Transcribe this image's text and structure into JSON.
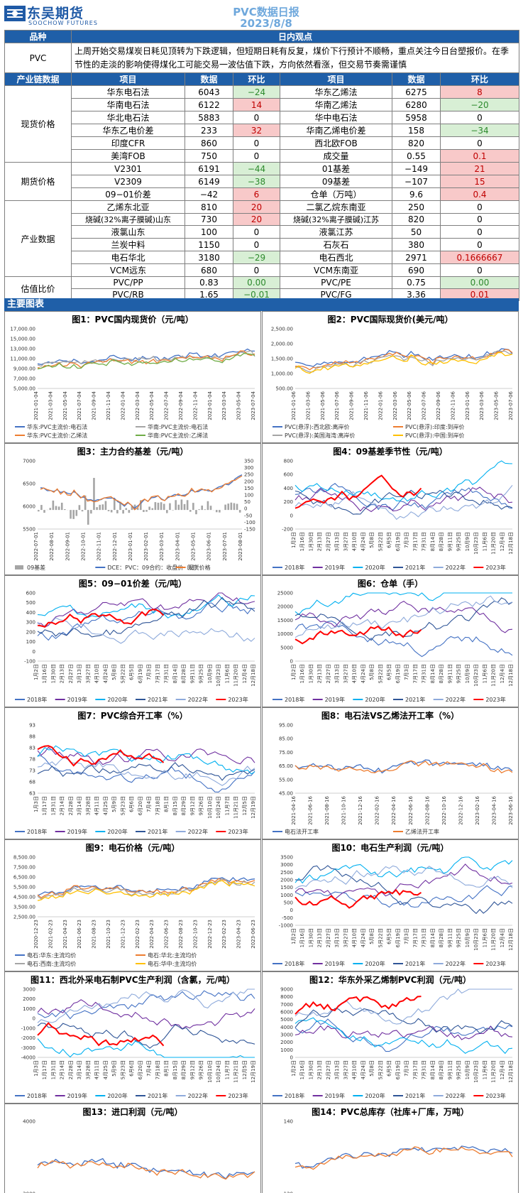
{
  "header": {
    "company_cn": "东吴期货",
    "company_en": "SOOCHOW FUTURES",
    "title": "PVC数据日报",
    "date": "2023/8/8"
  },
  "view": {
    "col_variety": "品种",
    "col_view": "日内观点",
    "variety": "PVC",
    "text": "上周开始交易煤炭日耗见顶转为下跌逻辑，但短期日耗有反复，煤价下行预计不顺畅，重点关注今日台塑报价。在季节性的走淡的影响使得煤化工可能交易一波估值下跌，方向依然看涨，但交易节奏需谨慎"
  },
  "table_headers": {
    "category": "产业链数据",
    "item": "项目",
    "data": "数据",
    "change": "环比"
  },
  "sections": [
    {
      "name": "现货价格",
      "rows": [
        {
          "l_item": "华东电石法",
          "l_val": "6043",
          "l_chg": "−24",
          "l_sign": "neg",
          "r_item": "华东乙烯法",
          "r_val": "6275",
          "r_chg": "8",
          "r_sign": "pos"
        },
        {
          "l_item": "华南电石法",
          "l_val": "6122",
          "l_chg": "14",
          "l_sign": "pos",
          "r_item": "华南乙烯法",
          "r_val": "6280",
          "r_chg": "−20",
          "r_sign": "neg"
        },
        {
          "l_item": "华北电石法",
          "l_val": "5883",
          "l_chg": "0",
          "l_sign": "",
          "r_item": "华中电石法",
          "r_val": "5958",
          "r_chg": "0",
          "r_sign": ""
        },
        {
          "l_item": "华东乙电价差",
          "l_val": "233",
          "l_chg": "32",
          "l_sign": "pos",
          "r_item": "华南乙烯电价差",
          "r_val": "158",
          "r_chg": "−34",
          "r_sign": "neg"
        },
        {
          "l_item": "印度CFR",
          "l_val": "860",
          "l_chg": "0",
          "l_sign": "",
          "r_item": "西北欧FOB",
          "r_val": "820",
          "r_chg": "0",
          "r_sign": ""
        },
        {
          "l_item": "美湾FOB",
          "l_val": "750",
          "l_chg": "0",
          "l_sign": "",
          "r_item": "成交量",
          "r_val": "0.55",
          "r_chg": "0.1",
          "r_sign": "pos"
        }
      ]
    },
    {
      "name": "期货价格",
      "rows": [
        {
          "l_item": "V2301",
          "l_val": "6191",
          "l_chg": "−44",
          "l_sign": "neg",
          "r_item": "01基差",
          "r_val": "−149",
          "r_chg": "21",
          "r_sign": "pos"
        },
        {
          "l_item": "V2309",
          "l_val": "6149",
          "l_chg": "−38",
          "l_sign": "neg",
          "r_item": "09基差",
          "r_val": "−107",
          "r_chg": "15",
          "r_sign": "pos"
        },
        {
          "l_item": "09−01价差",
          "l_val": "−42",
          "l_chg": "6",
          "l_sign": "pos",
          "r_item": "仓单（万吨）",
          "r_val": "9.6",
          "r_chg": "0.4",
          "r_sign": "pos"
        }
      ]
    },
    {
      "name": "产业数据",
      "rows": [
        {
          "l_item": "乙烯东北亚",
          "l_val": "810",
          "l_chg": "20",
          "l_sign": "pos",
          "r_item": "二氯乙烷东南亚",
          "r_val": "250",
          "r_chg": "0",
          "r_sign": ""
        },
        {
          "l_item": "烧碱(32%离子膜碱)山东",
          "l_val": "730",
          "l_chg": "20",
          "l_sign": "pos",
          "r_item": "烧碱(32%离子膜碱)江苏",
          "r_val": "820",
          "r_chg": "0",
          "r_sign": ""
        },
        {
          "l_item": "液氯山东",
          "l_val": "100",
          "l_chg": "0",
          "l_sign": "",
          "r_item": "液氯江苏",
          "r_val": "50",
          "r_chg": "0",
          "r_sign": ""
        },
        {
          "l_item": "兰炭中料",
          "l_val": "1150",
          "l_chg": "0",
          "l_sign": "",
          "r_item": "石灰石",
          "r_val": "380",
          "r_chg": "0",
          "r_sign": ""
        },
        {
          "l_item": "电石华北",
          "l_val": "3180",
          "l_chg": "−29",
          "l_sign": "neg",
          "r_item": "电石西北",
          "r_val": "2971",
          "r_chg": "0.1666667",
          "r_sign": "pos"
        },
        {
          "l_item": "VCM远东",
          "l_val": "680",
          "l_chg": "0",
          "l_sign": "",
          "r_item": "VCM东南亚",
          "r_val": "690",
          "r_chg": "0",
          "r_sign": ""
        }
      ]
    },
    {
      "name": "估值比价",
      "rows": [
        {
          "l_item": "PVC/PP",
          "l_val": "0.83",
          "l_chg": "0.00",
          "l_sign": "neg",
          "r_item": "PVC/PE",
          "r_val": "0.75",
          "r_chg": "0.00",
          "r_sign": "neg"
        },
        {
          "l_item": "PVC/RB",
          "l_val": "1.65",
          "l_chg": "−0.01",
          "l_sign": "neg",
          "r_item": "PVC/FG",
          "r_val": "3.36",
          "r_chg": "0.01",
          "r_sign": "pos"
        }
      ]
    }
  ],
  "charts_section": "主要图表",
  "colors": {
    "header_blue": "#1f5fa8",
    "neg_green": "#2d8a2d",
    "pos_red": "#c00000",
    "c2018": "#4472c4",
    "c2019": "#7030a0",
    "c2020": "#00b0f0",
    "c2021": "#2f5597",
    "c2022": "#8eaadb",
    "c2023": "#ff0000"
  },
  "charts": [
    {
      "title": "图1：PVC国内现货价（元/吨）",
      "type": "line",
      "yticks": [
        "17,000.00",
        "15,000.00",
        "13,000.00",
        "11,000.00",
        "9,000.00",
        "7,000.00",
        "5,000.00"
      ],
      "xticks": [
        "2021-01-04",
        "2021-03-04",
        "2021-05-04",
        "2021-07-04",
        "2021-09-04",
        "2021-11-04",
        "2022-01-04",
        "2022-03-04",
        "2022-05-04",
        "2022-07-04",
        "2022-09-04",
        "2022-11-04",
        "2023-01-04",
        "2023-03-04",
        "2023-05-04",
        "2023-07-04"
      ],
      "legend": [
        "华东:PVC主流价:电石法",
        "华南:PVC主流价:电石法",
        "华东:PVC主流价:乙烯法",
        "华南:PVC主流价:乙烯法"
      ],
      "legend_colors": [
        "#4472c4",
        "#a5a5a5",
        "#ed7d31",
        "#70ad47"
      ]
    },
    {
      "title": "图2：PVC国际现货价(美元/吨）",
      "type": "line",
      "yticks": [
        "2,500.00",
        "2,000.00",
        "1,500.00",
        "1,000.00",
        "500.00"
      ],
      "xticks": [
        "2021-01-06",
        "2021-03-06",
        "2021-05-06",
        "2021-07-06",
        "2021-09-06",
        "2021-11-06",
        "2022-01-06",
        "2022-03-06",
        "2022-05-06",
        "2022-07-06",
        "2022-09-06",
        "2022-11-06",
        "2023-01-06",
        "2023-03-06",
        "2023-05-06",
        "2023-07-06"
      ],
      "legend": [
        "PVC(悬浮):西北欧:离岸价",
        "PVC(悬浮):印度:到岸价",
        "PVC(悬浮):美国海湾:离岸价",
        "PVC(悬浮):中国:到岸价"
      ],
      "legend_colors": [
        "#4472c4",
        "#ed7d31",
        "#a5a5a5",
        "#ffc000"
      ]
    },
    {
      "title": "图3：主力合约基差（元/吨）",
      "type": "combo",
      "yticks": [
        "7000",
        "6500",
        "6000",
        "5500"
      ],
      "yticks_right": [
        "350",
        "300",
        "250",
        "200",
        "150",
        "100",
        "50",
        "0",
        "-50",
        "-100",
        "-150"
      ],
      "xticks": [
        "2022-07-01",
        "2022-08-01",
        "2022-09-01",
        "2022-10-01",
        "2022-11-01",
        "2022-12-01",
        "2023-01-01",
        "2023-02-01",
        "2023-03-01",
        "2023-04-01",
        "2023-05-01",
        "2023-06-01",
        "2023-07-01",
        "2023-08-01"
      ],
      "legend": [
        "09基差",
        "DCE：PVC：09合约：收盘价（日）",
        "现货价格"
      ],
      "legend_colors": [
        "#a5a5a5",
        "#4472c4",
        "#ed7d31"
      ]
    },
    {
      "title": "图4：09基差季节性（元/吨）",
      "type": "season",
      "yticks": [
        "800",
        "600",
        "400",
        "200",
        "0",
        "-200"
      ],
      "xticks": [
        "1月2日",
        "1月16日",
        "1月30日",
        "2月13日",
        "2月27日",
        "3月13日",
        "3月27日",
        "4月10日",
        "4月24日",
        "5月8日",
        "5月22日",
        "6月5日",
        "6月19日",
        "7月3日",
        "7月17日",
        "7月31日",
        "8月14日",
        "8月28日",
        "9月11日",
        "9月25日",
        "10月9日",
        "10月23日",
        "11月6日",
        "11月20日",
        "12月4日",
        "12月18日"
      ],
      "legend": [
        "2018年",
        "2019年",
        "2020年",
        "2021年",
        "2022年",
        "2023年"
      ]
    },
    {
      "title": "图5：09−01价差（元/吨）",
      "type": "season",
      "yticks": [
        "600",
        "500",
        "400",
        "300",
        "200",
        "100",
        "0",
        "-100"
      ],
      "xticks": [
        "1月2日",
        "1月16日",
        "1月30日",
        "2月13日",
        "2月27日",
        "3月13日",
        "3月27日",
        "4月10日",
        "4月24日",
        "5月8日",
        "5月22日",
        "6月5日",
        "6月19日",
        "7月3日",
        "7月17日",
        "7月31日",
        "8月14日",
        "8月28日",
        "9月11日",
        "9月25日",
        "10月9日",
        "10月23日",
        "11月6日",
        "11月20日",
        "12月4日",
        "12月18日"
      ],
      "legend": [
        "2018年",
        "2019年",
        "2020年",
        "2021年",
        "2022年",
        "2023年"
      ]
    },
    {
      "title": "图6：仓单（手）",
      "type": "season",
      "yticks": [
        "25000",
        "20000",
        "15000",
        "10000",
        "5000",
        "0"
      ],
      "xticks": [
        "1月2日",
        "1月16日",
        "1月30日",
        "2月13日",
        "2月27日",
        "3月13日",
        "3月27日",
        "4月10日",
        "4月24日",
        "5月8日",
        "5月22日",
        "6月5日",
        "6月19日",
        "7月3日",
        "7月17日",
        "7月31日",
        "8月14日",
        "8月28日",
        "9月11日",
        "9月25日",
        "10月9日",
        "10月23日",
        "11月6日",
        "11月20日",
        "12月4日",
        "12月18日"
      ],
      "legend": [
        "2018年",
        "2019年",
        "2020年",
        "2021年",
        "2022年",
        "2023年"
      ]
    },
    {
      "title": "图7：PVC综合开工率（%）",
      "type": "season",
      "yticks": [
        "93",
        "88",
        "83",
        "78",
        "73",
        "68",
        "63"
      ],
      "xticks": [
        "1月3日",
        "1月17日",
        "1月31日",
        "2月14日",
        "2月28日",
        "3月14日",
        "3月28日",
        "4月11日",
        "4月25日",
        "5月9日",
        "5月23日",
        "6月6日",
        "6月20日",
        "7月4日",
        "7月18日",
        "8月1日",
        "8月15日",
        "8月29日",
        "9月12日",
        "9月26日",
        "10月10日",
        "10月24日",
        "11月7日",
        "11月21日",
        "12月5日",
        "12月19日"
      ],
      "legend": [
        "2018年",
        "2019年",
        "2020年",
        "2021年",
        "2022年",
        "2023年"
      ]
    },
    {
      "title": "图8：电石法VS乙烯法开工率（%）",
      "type": "line",
      "yticks": [
        "95.00",
        "85.00",
        "75.00",
        "65.00",
        "55.00",
        "45.00"
      ],
      "xticks": [
        "2021-04-16",
        "2021-06-16",
        "2021-08-16",
        "2021-10-16",
        "2021-12-16",
        "2022-02-16",
        "2022-04-16",
        "2022-06-16",
        "2022-08-16",
        "2022-10-16",
        "2022-12-16",
        "2023-02-16",
        "2023-04-16",
        "2023-06-16"
      ],
      "legend": [
        "电石法开工率",
        "乙烯法开工率"
      ],
      "legend_colors": [
        "#4472c4",
        "#ed7d31"
      ]
    },
    {
      "title": "图9：电石价格（元/吨）",
      "type": "line",
      "yticks": [
        "8,500.00",
        "7,500.00",
        "6,500.00",
        "5,500.00",
        "4,500.00",
        "3,500.00",
        "2,500.00"
      ],
      "xticks": [
        "2020-12-23",
        "2021-02-23",
        "2021-04-23",
        "2021-06-23",
        "2021-08-23",
        "2021-10-23",
        "2021-12-23",
        "2022-02-23",
        "2022-04-23",
        "2022-06-23",
        "2022-08-23",
        "2022-10-23",
        "2022-12-23",
        "2023-02-23",
        "2023-04-23",
        "2023-06-23"
      ],
      "legend": [
        "电石:华东:主流均价",
        "电石:华北:主流均价",
        "电石:西南:主流均价",
        "电石:华中:主流均价"
      ],
      "legend_colors": [
        "#4472c4",
        "#ed7d31",
        "#a5a5a5",
        "#ffc000"
      ]
    },
    {
      "title": "图10：电石生产利润（元/吨）",
      "type": "season",
      "yticks": [
        "3500",
        "3000",
        "2500",
        "2000",
        "1500",
        "1000",
        "500",
        "0",
        "-500",
        "-1000"
      ],
      "xticks": [
        "1月2日",
        "1月16日",
        "1月30日",
        "2月13日",
        "2月27日",
        "3月13日",
        "3月27日",
        "4月10日",
        "4月24日",
        "5月8日",
        "5月22日",
        "6月5日",
        "6月19日",
        "7月3日",
        "7月17日",
        "7月31日",
        "8月14日",
        "8月28日",
        "9月11日",
        "9月25日",
        "10月9日",
        "10月23日",
        "11月6日",
        "11月20日",
        "12月4日",
        "12月18日"
      ],
      "legend": [
        "2018年",
        "2019年",
        "2020年",
        "2021年",
        "2022年",
        "2023年"
      ]
    },
    {
      "title": "图11：西北外采电石制PVC生产利润（含氯，元/吨）",
      "type": "season",
      "yticks": [
        "3000",
        "2000",
        "1000",
        "0",
        "-1000",
        "-2000",
        "-3000",
        "-4000"
      ],
      "xticks": [
        "1月3日",
        "1月17日",
        "1月31日",
        "2月14日",
        "2月28日",
        "3月14日",
        "3月28日",
        "4月11日",
        "4月25日",
        "5月9日",
        "5月23日",
        "6月6日",
        "6月20日",
        "7月4日",
        "7月18日",
        "8月1日",
        "8月15日",
        "8月29日",
        "9月12日",
        "9月26日",
        "10月10日",
        "10月24日",
        "11月7日",
        "11月21日",
        "12月5日",
        "12月19日"
      ],
      "legend": [
        "2018年",
        "2019年",
        "2020年",
        "2021年",
        "2022年",
        "2023年"
      ]
    },
    {
      "title": "图12：华东外采乙烯制PVC利润（元/吨）",
      "type": "season",
      "yticks": [
        "9000",
        "8000",
        "7000",
        "6000",
        "5000",
        "4000",
        "3000",
        "2000",
        "1000",
        "0"
      ],
      "xticks": [
        "1月2日",
        "1月16日",
        "1月30日",
        "2月13日",
        "2月27日",
        "3月13日",
        "3月27日",
        "4月10日",
        "4月24日",
        "5月8日",
        "5月22日",
        "6月5日",
        "6月19日",
        "7月3日",
        "7月17日",
        "7月31日",
        "8月14日",
        "8月28日",
        "9月11日",
        "9月25日",
        "10月9日",
        "10月23日",
        "11月6日",
        "11月20日",
        "12月4日",
        "12月18日"
      ],
      "legend": [
        "2018年",
        "2019年",
        "2020年",
        "2021年",
        "2022年",
        "2023年"
      ]
    },
    {
      "title": "图13：进口利润（元/吨）",
      "type": "line",
      "yticks": [
        "4000",
        "3000"
      ],
      "xticks": [],
      "legend": []
    },
    {
      "title": "图14：PVC总库存（社库+厂库，万吨）",
      "type": "line",
      "yticks": [
        "140",
        "120"
      ],
      "xticks": [],
      "legend": []
    }
  ]
}
